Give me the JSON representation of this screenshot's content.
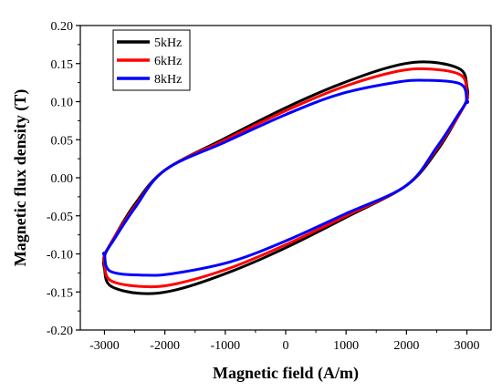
{
  "chart_data": {
    "type": "line",
    "xlabel": "Magnetic field (A/m)",
    "ylabel": "Magnetic flux density (T)",
    "xlim": [
      -3400,
      3400
    ],
    "ylim": [
      -0.2,
      0.2
    ],
    "x_ticks": [
      -3000,
      -2000,
      -1000,
      0,
      1000,
      2000,
      3000
    ],
    "x_tick_labels": [
      "-3000",
      "-2000",
      "-1000",
      "0",
      "1000",
      "2000",
      "3000"
    ],
    "y_ticks": [
      -0.2,
      -0.15,
      -0.1,
      -0.05,
      0,
      0.05,
      0.1,
      0.15,
      0.2
    ],
    "y_tick_labels": [
      "-0.20",
      "-0.15",
      "-0.10",
      "-0.05",
      "0.00",
      "0.05",
      "0.10",
      "0.15",
      "0.20"
    ],
    "grid": false,
    "legend_position": "top-left",
    "series": [
      {
        "name": "5kHz",
        "color": "#000000",
        "x": [
          -3000,
          -2900,
          -2400,
          -1800,
          -900,
          0,
          1000,
          2000,
          2500,
          2850,
          3000,
          3000,
          2900,
          2400,
          1800,
          900,
          0,
          -1000,
          -2000,
          -2500,
          -2850,
          -3000,
          -3000
        ],
        "y": [
          -0.12,
          -0.142,
          -0.152,
          -0.147,
          -0.123,
          -0.092,
          -0.052,
          -0.01,
          0.035,
          0.08,
          0.103,
          0.12,
          0.142,
          0.152,
          0.147,
          0.123,
          0.092,
          0.052,
          0.01,
          -0.035,
          -0.08,
          -0.103,
          -0.12
        ]
      },
      {
        "name": "6kHz",
        "color": "#ff0000",
        "x": [
          -3000,
          -2900,
          -2350,
          -1800,
          -900,
          0,
          1000,
          2000,
          2500,
          2850,
          3000,
          3000,
          2900,
          2350,
          1800,
          900,
          0,
          -1000,
          -2000,
          -2500,
          -2850,
          -3000,
          -3000
        ],
        "y": [
          -0.112,
          -0.135,
          -0.143,
          -0.139,
          -0.118,
          -0.088,
          -0.05,
          -0.01,
          0.038,
          0.08,
          0.102,
          0.112,
          0.135,
          0.143,
          0.139,
          0.118,
          0.088,
          0.05,
          0.01,
          -0.038,
          -0.08,
          -0.102,
          -0.112
        ]
      },
      {
        "name": "8kHz",
        "color": "#0000ff",
        "x": [
          -3000,
          -2900,
          -2300,
          -1800,
          -900,
          0,
          1000,
          2000,
          2500,
          2850,
          3000,
          3000,
          2900,
          2300,
          1800,
          900,
          0,
          -1000,
          -2000,
          -2500,
          -2850,
          -3000,
          -3000
        ],
        "y": [
          -0.1,
          -0.123,
          -0.128,
          -0.125,
          -0.11,
          -0.083,
          -0.047,
          -0.01,
          0.04,
          0.082,
          0.1,
          0.1,
          0.123,
          0.128,
          0.125,
          0.11,
          0.083,
          0.047,
          0.01,
          -0.04,
          -0.082,
          -0.1,
          -0.1
        ]
      }
    ]
  }
}
